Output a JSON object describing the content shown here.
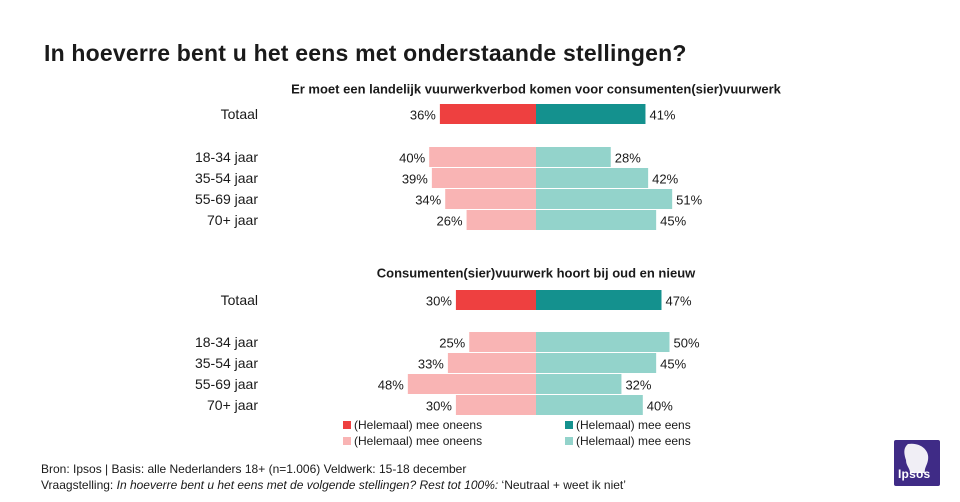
{
  "title": "In hoeverre bent u het eens met onderstaande stellingen?",
  "colors": {
    "oneens_totaal": "#ee4040",
    "eens_totaal": "#14918e",
    "oneens_groep": "#f9b4b4",
    "eens_groep": "#93d3cb"
  },
  "chart_data": [
    {
      "type": "bar",
      "orientation": "horizontal-diverging",
      "title": "Er moet een landelijk vuurwerkverbod komen voor consumenten(sier)vuurwerk",
      "categories": [
        "Totaal",
        "18-34 jaar",
        "35-54 jaar",
        "55-69 jaar",
        "70+ jaar"
      ],
      "series": [
        {
          "name": "(Helemaal) mee oneens",
          "values": [
            36,
            40,
            39,
            34,
            26
          ]
        },
        {
          "name": "(Helemaal) mee eens",
          "values": [
            41,
            28,
            42,
            51,
            45
          ]
        }
      ],
      "labels": {
        "oneens": [
          "36%",
          "40%",
          "39%",
          "34%",
          "26%"
        ],
        "eens": [
          "41%",
          "28%",
          "42%",
          "51%",
          "45%"
        ]
      }
    },
    {
      "type": "bar",
      "orientation": "horizontal-diverging",
      "title": "Consumenten(sier)vuurwerk hoort bij oud en nieuw",
      "categories": [
        "Totaal",
        "18-34 jaar",
        "35-54 jaar",
        "55-69 jaar",
        "70+ jaar"
      ],
      "series": [
        {
          "name": "(Helemaal) mee oneens",
          "values": [
            30,
            25,
            33,
            48,
            30
          ]
        },
        {
          "name": "(Helemaal) mee eens",
          "values": [
            47,
            50,
            45,
            32,
            40
          ]
        }
      ],
      "labels": {
        "oneens": [
          "30%",
          "25%",
          "33%",
          "48%",
          "30%"
        ],
        "eens": [
          "47%",
          "50%",
          "45%",
          "32%",
          "40%"
        ]
      }
    }
  ],
  "legend": [
    {
      "label": "(Helemaal) mee oneens",
      "color": "#ee4040"
    },
    {
      "label": "(Helemaal) mee eens",
      "color": "#14918e"
    },
    {
      "label": "(Helemaal) mee oneens",
      "color": "#f9b4b4"
    },
    {
      "label": "(Helemaal) mee eens",
      "color": "#93d3cb"
    }
  ],
  "footer": {
    "source": "Bron: Ipsos | Basis: alle Nederlanders 18+ (n=1.006) Veldwerk: 15-18 december",
    "question_label": "Vraagstelling: ",
    "question_italic": "In hoeverre bent u het eens met de volgende stellingen? Rest tot 100%:",
    "question_rest": " ‘Neutraal + weet ik niet’"
  },
  "logo": {
    "text": "Ipsos"
  }
}
